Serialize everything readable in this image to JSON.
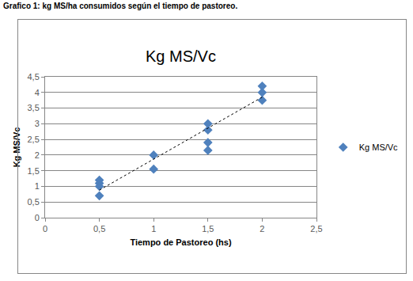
{
  "chart_data": {
    "type": "scatter",
    "caption": "Grafico 1: kg MS/ha consumidos según el tiempo de pastoreo.",
    "title": "Kg MS/Vc",
    "x_label": "Tiempo de Pastoreo (hs)",
    "y_label": "Kg MS/Vc",
    "xlim": [
      0,
      2.5
    ],
    "xticks": [
      0,
      {
        "value": 0.5,
        "label": "0,5"
      },
      1,
      {
        "value": 1.5,
        "label": "1,5"
      },
      2,
      {
        "value": 2.5,
        "label": "2,5"
      }
    ],
    "ylim": [
      0,
      4.5
    ],
    "yticks": [
      0,
      {
        "value": 0.5,
        "label": "0,5"
      },
      1,
      {
        "value": 1.5,
        "label": "1,5"
      },
      2,
      {
        "value": 2.5,
        "label": "2,5"
      },
      3,
      {
        "value": 3.5,
        "label": "3,5"
      },
      4,
      {
        "value": 4.5,
        "label": "4,5"
      }
    ],
    "grid": true,
    "legend": "right",
    "series": [
      {
        "name": "Kg MS/Vc",
        "type": "scatter",
        "color": "#4f81bd",
        "marker": "diamond",
        "x": [
          0.5,
          0.5,
          0.5,
          0.5,
          1,
          1,
          1.5,
          1.5,
          1.5,
          1.5,
          2,
          2,
          2
        ],
        "values": [
          1.2,
          1.1,
          1.0,
          0.7,
          2.0,
          1.55,
          3.0,
          2.8,
          2.4,
          2.15,
          4.2,
          4.0,
          3.75
        ]
      },
      {
        "type": "line",
        "color": "#000000",
        "line_style": "dot",
        "x": [
          0.5,
          2
        ],
        "values": [
          0.88,
          3.85
        ]
      }
    ]
  }
}
